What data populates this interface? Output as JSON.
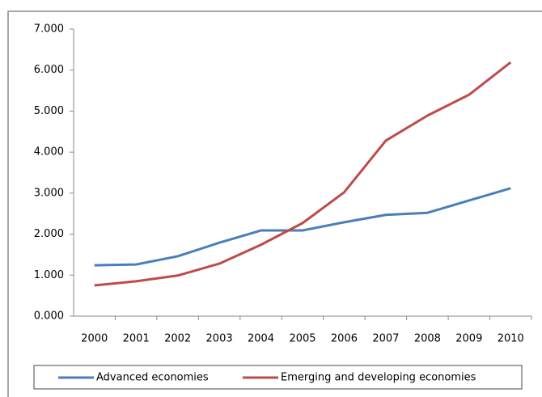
{
  "chart_data": {
    "type": "line",
    "categories": [
      "2000",
      "2001",
      "2002",
      "2003",
      "2004",
      "2005",
      "2006",
      "2007",
      "2008",
      "2009",
      "2010"
    ],
    "series": [
      {
        "name": "Advanced economies",
        "color": "#4a7ebb",
        "values": [
          1.24,
          1.26,
          1.46,
          1.79,
          2.09,
          2.09,
          2.29,
          2.47,
          2.52,
          2.82,
          3.12
        ]
      },
      {
        "name": "Emerging and developing economies",
        "color": "#be4b48",
        "values": [
          0.75,
          0.85,
          0.99,
          1.28,
          1.74,
          2.27,
          3.02,
          4.28,
          4.89,
          5.4,
          6.19
        ]
      }
    ],
    "ylim": [
      0,
      7
    ],
    "yticks": [
      {
        "value": 0,
        "label": "0.000"
      },
      {
        "value": 1,
        "label": "1.000"
      },
      {
        "value": 2,
        "label": "2.000"
      },
      {
        "value": 3,
        "label": "3.000"
      },
      {
        "value": 4,
        "label": "4.000"
      },
      {
        "value": 5,
        "label": "5.000"
      },
      {
        "value": 6,
        "label": "6.000"
      },
      {
        "value": 7,
        "label": "7.000"
      }
    ],
    "grid": false,
    "legend": "bottom"
  }
}
